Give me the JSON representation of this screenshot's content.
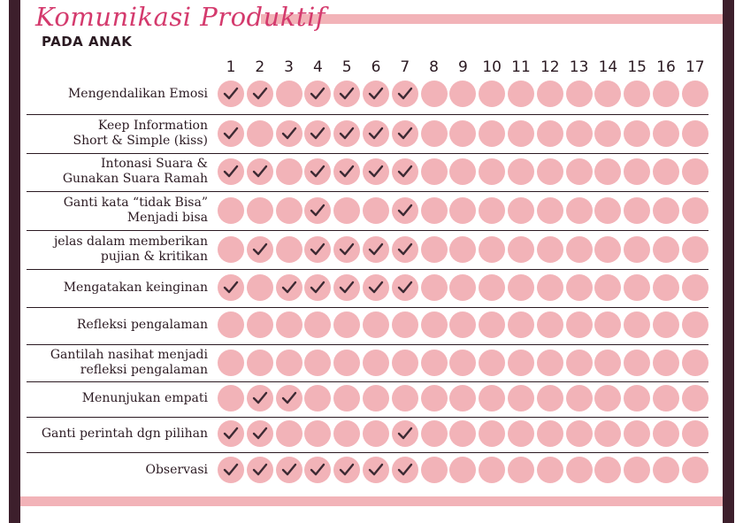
{
  "header": {
    "title": "Komunikasi Produktif",
    "subtitle": "PADA ANAK"
  },
  "columns": [
    "1",
    "2",
    "3",
    "4",
    "5",
    "6",
    "7",
    "8",
    "9",
    "10",
    "11",
    "12",
    "13",
    "14",
    "15",
    "16",
    "17"
  ],
  "rows": [
    {
      "label": [
        "Mengendalikan Emosi"
      ],
      "checks": [
        1,
        1,
        0,
        1,
        1,
        1,
        1,
        0,
        0,
        0,
        0,
        0,
        0,
        0,
        0,
        0,
        0
      ]
    },
    {
      "label": [
        "Keep Information",
        "Short & Simple (kiss)"
      ],
      "checks": [
        1,
        0,
        1,
        1,
        1,
        1,
        1,
        0,
        0,
        0,
        0,
        0,
        0,
        0,
        0,
        0,
        0
      ]
    },
    {
      "label": [
        "Intonasi Suara &",
        "Gunakan Suara Ramah"
      ],
      "checks": [
        1,
        1,
        0,
        1,
        1,
        1,
        1,
        0,
        0,
        0,
        0,
        0,
        0,
        0,
        0,
        0,
        0
      ]
    },
    {
      "label": [
        "Ganti kata “tidak Bisa”",
        "Menjadi bisa"
      ],
      "checks": [
        0,
        0,
        0,
        1,
        0,
        0,
        1,
        0,
        0,
        0,
        0,
        0,
        0,
        0,
        0,
        0,
        0
      ]
    },
    {
      "label": [
        "jelas dalam memberikan",
        "pujian & kritikan"
      ],
      "checks": [
        0,
        1,
        0,
        1,
        1,
        1,
        1,
        0,
        0,
        0,
        0,
        0,
        0,
        0,
        0,
        0,
        0
      ]
    },
    {
      "label": [
        "Mengatakan keinginan"
      ],
      "checks": [
        1,
        0,
        1,
        1,
        1,
        1,
        1,
        0,
        0,
        0,
        0,
        0,
        0,
        0,
        0,
        0,
        0
      ]
    },
    {
      "label": [
        "Refleksi pengalaman"
      ],
      "checks": [
        0,
        0,
        0,
        0,
        0,
        0,
        0,
        0,
        0,
        0,
        0,
        0,
        0,
        0,
        0,
        0,
        0
      ]
    },
    {
      "label": [
        "Gantilah nasihat menjadi",
        "refleksi pengalaman"
      ],
      "checks": [
        0,
        0,
        0,
        0,
        0,
        0,
        0,
        0,
        0,
        0,
        0,
        0,
        0,
        0,
        0,
        0,
        0
      ]
    },
    {
      "label": [
        "Menunjukan empati"
      ],
      "checks": [
        0,
        1,
        1,
        0,
        0,
        0,
        0,
        0,
        0,
        0,
        0,
        0,
        0,
        0,
        0,
        0,
        0
      ]
    },
    {
      "label": [
        "Ganti perintah dgn pilihan"
      ],
      "checks": [
        1,
        1,
        0,
        0,
        0,
        0,
        1,
        0,
        0,
        0,
        0,
        0,
        0,
        0,
        0,
        0,
        0
      ]
    },
    {
      "label": [
        "Observasi"
      ],
      "checks": [
        1,
        1,
        1,
        1,
        1,
        1,
        1,
        0,
        0,
        0,
        0,
        0,
        0,
        0,
        0,
        0,
        0
      ]
    }
  ],
  "colors": {
    "circle": "#f2b3b8",
    "check": "#3d2a33",
    "title": "#d43a6d",
    "frame": "#3d1f2c"
  },
  "icons": {
    "check": "check-icon",
    "empty": "circle-icon"
  }
}
